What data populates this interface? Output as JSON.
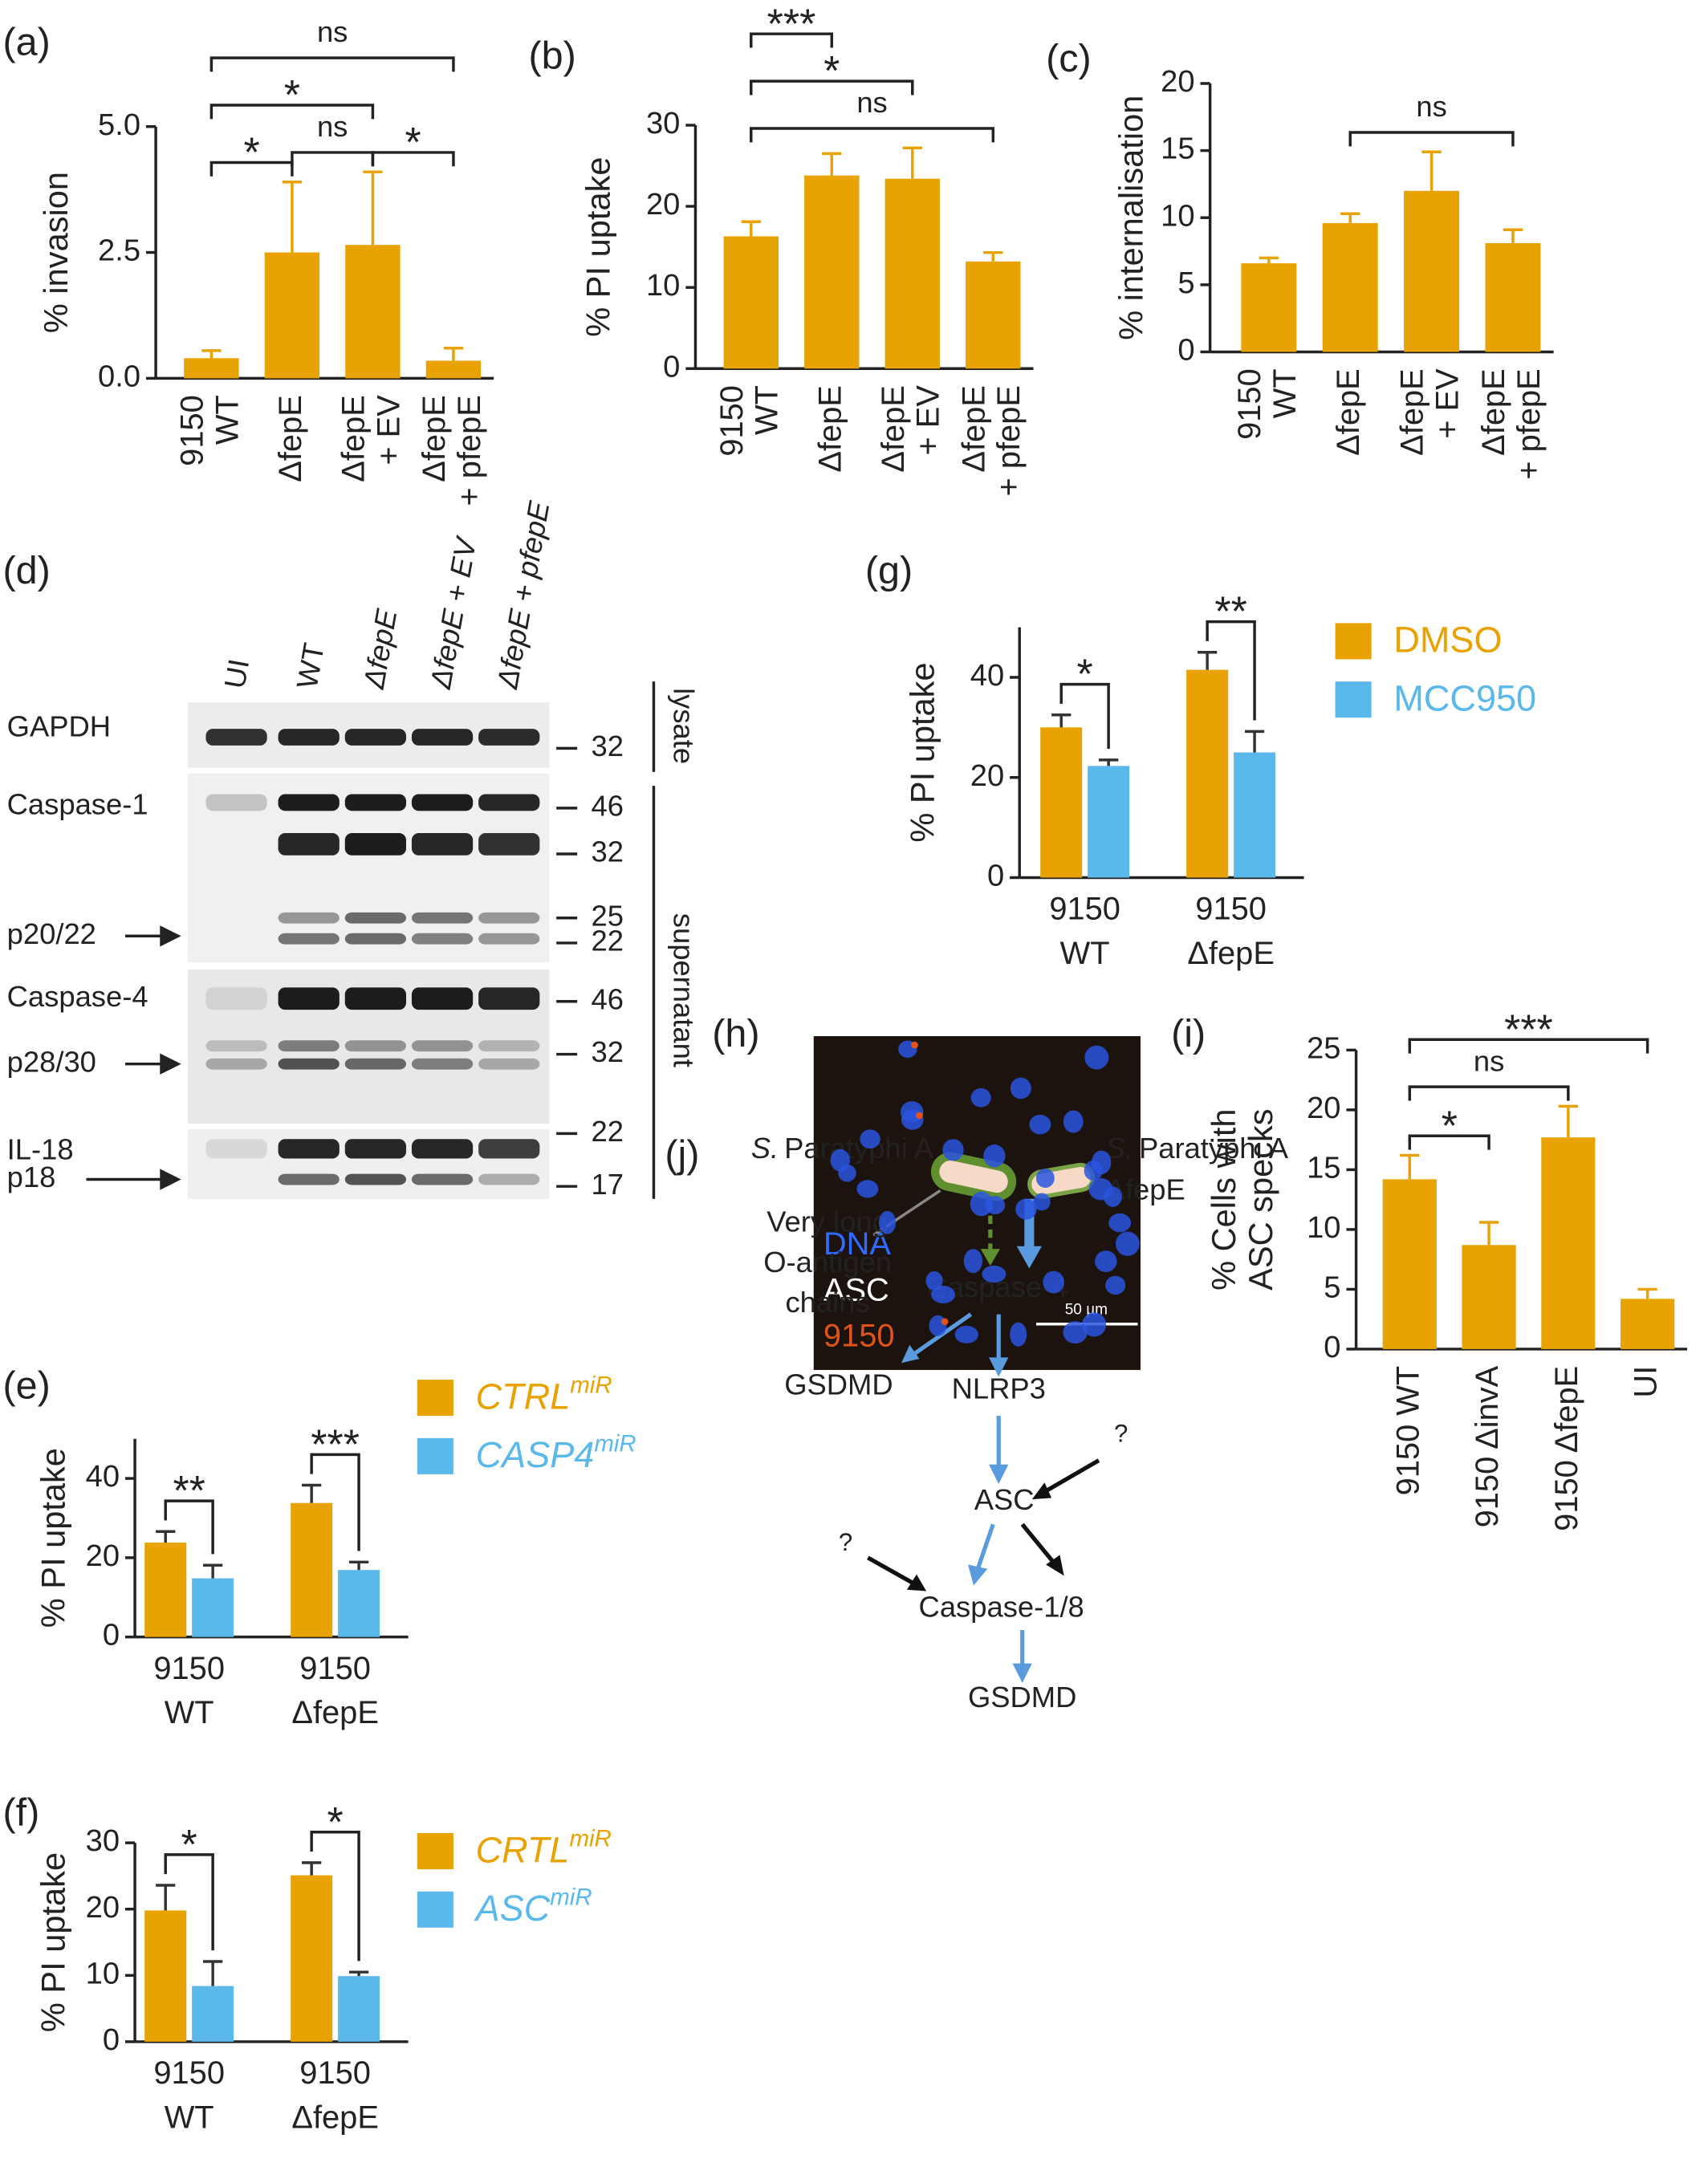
{
  "panel_labels": [
    "(a)",
    "(b)",
    "(c)",
    "(d)",
    "(e)",
    "(f)",
    "(g)",
    "(h)",
    "(i)",
    "(j)"
  ],
  "chart_data": [
    {
      "type": "bar",
      "y_label": [
        "% invasion"
      ],
      "categories": [
        [
          "9150",
          "WT"
        ],
        [
          "ΔfepE"
        ],
        [
          "ΔfepE",
          "+ EV"
        ],
        [
          "ΔfepE",
          "+ pfepE"
        ]
      ],
      "values": [
        0.4,
        2.5,
        2.65,
        0.35
      ],
      "errors": [
        0.15,
        1.4,
        1.45,
        0.25
      ],
      "color": "#e8a202",
      "ylim": [
        0,
        5
      ],
      "yticks": [
        {
          "value": 0,
          "label": "0.0"
        },
        2.5,
        {
          "value": 5,
          "label": "5.0"
        }
      ],
      "brackets": [
        {
          "from": 0,
          "to": 1,
          "label": "*"
        },
        {
          "from": 1,
          "to": 2,
          "label": "ns"
        },
        {
          "from": 2,
          "to": 3,
          "label": "*"
        },
        {
          "from": 0,
          "to": 2,
          "label": "*"
        },
        {
          "from": 0,
          "to": 3,
          "label": "ns"
        }
      ]
    },
    {
      "type": "bar",
      "y_label": [
        "% PI uptake"
      ],
      "categories": [
        [
          "9150",
          "WT"
        ],
        [
          "ΔfepE"
        ],
        [
          "ΔfepE",
          "+ EV"
        ],
        [
          "ΔfepE",
          "+ pfepE"
        ]
      ],
      "values": [
        16.3,
        23.8,
        23.4,
        13.2
      ],
      "errors": [
        1.8,
        2.7,
        3.8,
        1.1
      ],
      "color": "#e8a202",
      "ylim": [
        0,
        30
      ],
      "yticks": [
        0,
        10,
        20,
        30
      ],
      "brackets": [
        {
          "from": 0,
          "to": 3,
          "label": "ns"
        },
        {
          "from": 0,
          "to": 2,
          "label": "*"
        },
        {
          "from": 0,
          "to": 1,
          "label": "***"
        }
      ]
    },
    {
      "type": "bar",
      "y_label": [
        "% internalisation"
      ],
      "categories": [
        [
          "9150",
          "WT"
        ],
        [
          "ΔfepE"
        ],
        [
          "ΔfepE",
          "+ EV"
        ],
        [
          "ΔfepE",
          "+ pfepE"
        ]
      ],
      "values": [
        6.6,
        9.6,
        12,
        8.1
      ],
      "errors": [
        0.4,
        0.7,
        2.9,
        1.0
      ],
      "color": "#e8a202",
      "ylim": [
        0,
        20
      ],
      "yticks": [
        0,
        5,
        10,
        15,
        20
      ],
      "brackets": [
        {
          "from": 1,
          "to": 3,
          "label": "ns"
        }
      ]
    },
    {
      "type": "grouped_bar",
      "y_label": [
        "% PI uptake"
      ],
      "categories": [
        [
          "9150",
          "WT"
        ],
        [
          "9150",
          "ΔfepE"
        ]
      ],
      "series": [
        {
          "name": "CTRL",
          "name_sup": "miR",
          "italic": true,
          "color": "#e8a202",
          "values": [
            23.8,
            33.8
          ],
          "errors": [
            2.8,
            4.5
          ]
        },
        {
          "name": "CASP4",
          "name_sup": "miR",
          "italic": true,
          "color": "#5bb8ea",
          "values": [
            14.8,
            16.9
          ],
          "errors": [
            3.3,
            2.0
          ]
        }
      ],
      "ylim": [
        0,
        50
      ],
      "yticks": [
        0,
        20,
        40
      ],
      "brackets": [
        {
          "group": 0,
          "label": "**"
        },
        {
          "group": 1,
          "label": "***"
        }
      ]
    },
    {
      "type": "grouped_bar",
      "y_label": [
        "% PI uptake"
      ],
      "categories": [
        [
          "9150",
          "WT"
        ],
        [
          "9150",
          "ΔfepE"
        ]
      ],
      "series": [
        {
          "name": "CRTL",
          "name_sup": "miR",
          "italic": true,
          "color": "#e8a202",
          "values": [
            19.8,
            25.1
          ],
          "errors": [
            3.8,
            1.9
          ]
        },
        {
          "name": "ASC",
          "name_sup": "miR",
          "italic": true,
          "color": "#5bb8ea",
          "values": [
            8.4,
            9.9
          ],
          "errors": [
            3.7,
            0.6
          ]
        }
      ],
      "ylim": [
        0,
        30
      ],
      "yticks": [
        0,
        10,
        20,
        30
      ],
      "brackets": [
        {
          "group": 0,
          "label": "*"
        },
        {
          "group": 1,
          "label": "*"
        }
      ]
    },
    {
      "type": "grouped_bar",
      "y_label": [
        "% PI uptake"
      ],
      "categories": [
        [
          "9150",
          "WT"
        ],
        [
          "9150",
          "ΔfepE"
        ]
      ],
      "series": [
        {
          "name": "DMSO",
          "color": "#e8a202",
          "values": [
            30,
            41.5
          ],
          "errors": [
            2.5,
            3.5
          ]
        },
        {
          "name": "MCC950",
          "color": "#5bb8ea",
          "values": [
            22.3,
            25
          ],
          "errors": [
            1.2,
            4.2
          ]
        }
      ],
      "ylim": [
        0,
        50
      ],
      "yticks": [
        0,
        20,
        40
      ],
      "brackets": [
        {
          "group": 0,
          "label": "*"
        },
        {
          "group": 1,
          "label": "**"
        }
      ]
    },
    {
      "type": "bar",
      "y_label": [
        "% Cells with",
        "ASC specks"
      ],
      "categories": [
        [
          "9150 WT"
        ],
        [
          "9150 ΔinvA"
        ],
        [
          "9150 ΔfepE"
        ],
        [
          "UI"
        ]
      ],
      "values": [
        14.2,
        8.7,
        17.7,
        4.2
      ],
      "errors": [
        2.0,
        1.9,
        2.6,
        0.8
      ],
      "color": "#e8a202",
      "ylim": [
        0,
        25
      ],
      "yticks": [
        0,
        5,
        10,
        15,
        20,
        25
      ],
      "brackets": [
        {
          "from": 0,
          "to": 1,
          "label": "*"
        },
        {
          "from": 0,
          "to": 2,
          "label": "ns"
        },
        {
          "from": 0,
          "to": 3,
          "label": "***"
        }
      ]
    }
  ],
  "blot": {
    "lanes": [
      "UI",
      "WT",
      "ΔfepE",
      "ΔfepE + EV",
      "ΔfepE + pfepE"
    ],
    "rows": [
      "GAPDH",
      "Caspase-1",
      "p20/22",
      "Caspase-4",
      "p28/30",
      "IL-18",
      "p18"
    ],
    "markers": [
      32,
      46,
      32,
      25,
      22,
      46,
      32,
      22,
      17
    ],
    "fractions": [
      "lysate",
      "supernatant"
    ]
  },
  "micrograph": {
    "labels": [
      "DNA",
      "ASC",
      "9150"
    ],
    "scale_bar": "50 µm"
  },
  "diagram": {
    "strain_wt": {
      "genus": "S.",
      "name": "Paratyphi A"
    },
    "strain_mutant": {
      "genus": "S.",
      "name": "Paratyphi A",
      "mutation": "ΔfepE"
    },
    "o_antigen_note": [
      "Very long",
      "O-antigen",
      "chains"
    ],
    "nodes": [
      "Caspase-4",
      "GSDMD",
      "NLRP3",
      "ASC",
      "Caspase-1/8",
      "GSDMD"
    ],
    "unknown_inputs": [
      "?",
      "?"
    ]
  }
}
